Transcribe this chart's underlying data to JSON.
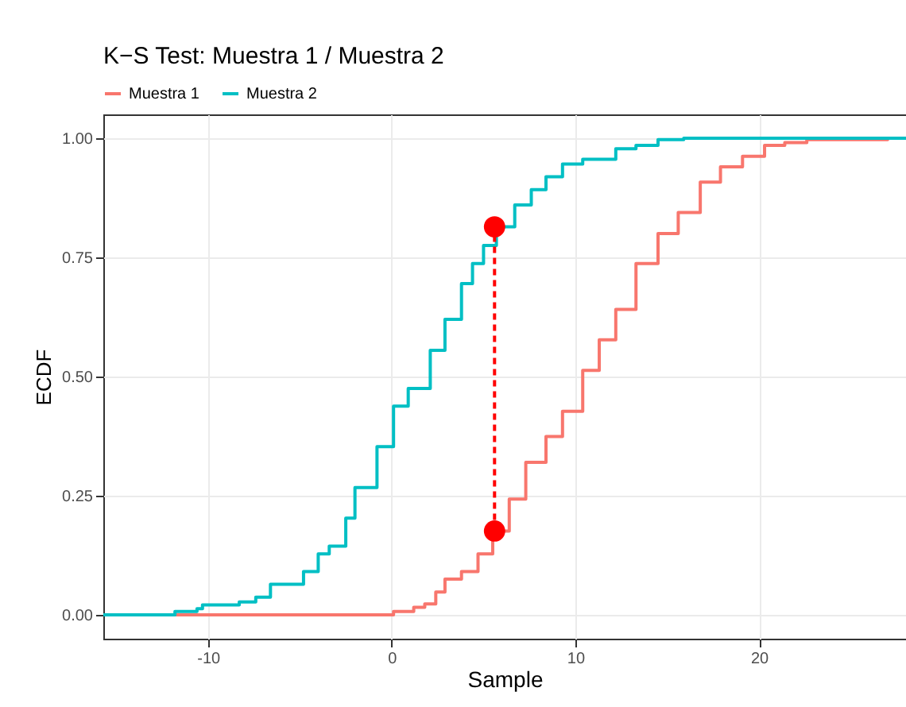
{
  "chart_data": {
    "type": "step",
    "title": "K−S Test: Muestra 1 / Muestra 2",
    "xlabel": "Sample",
    "ylabel": "ECDF",
    "xlim": [
      -15.7,
      28
    ],
    "xticks": [
      -10,
      0,
      10,
      20
    ],
    "ylim": [
      -0.05,
      1.05
    ],
    "yticks": [
      {
        "value": 0,
        "label": "0.00"
      },
      {
        "value": 0.25,
        "label": "0.25"
      },
      {
        "value": 0.5,
        "label": "0.50"
      },
      {
        "value": 0.75,
        "label": "0.75"
      },
      {
        "value": 1,
        "label": "1.00"
      }
    ],
    "grid": true,
    "legend": "top",
    "series": [
      {
        "name": "Muestra 1",
        "color": "#f8766d",
        "x": [
          -13.5,
          -0.4,
          0.1,
          1.2,
          1.8,
          2.4,
          2.9,
          3.8,
          4.7,
          5.5,
          6.4,
          7.3,
          8.4,
          9.3,
          10.4,
          11.3,
          12.2,
          13.3,
          14.5,
          15.6,
          16.8,
          17.9,
          19.1,
          20.3,
          21.4,
          22.6,
          27.0
        ],
        "values": [
          0,
          0,
          0.007,
          0.016,
          0.023,
          0.048,
          0.075,
          0.091,
          0.128,
          0.176,
          0.243,
          0.32,
          0.374,
          0.427,
          0.513,
          0.577,
          0.641,
          0.737,
          0.8,
          0.844,
          0.908,
          0.94,
          0.962,
          0.985,
          0.991,
          0.997,
          1
        ]
      },
      {
        "name": "Muestra 2",
        "color": "#00bfc4",
        "x": [
          -15.7,
          -13.5,
          -11.8,
          -10.6,
          -10.3,
          -8.3,
          -7.4,
          -6.6,
          -4.8,
          -4.0,
          -3.4,
          -2.5,
          -2.0,
          -0.8,
          0.1,
          0.9,
          2.1,
          2.9,
          3.8,
          4.4,
          5.0,
          5.7,
          6.7,
          7.6,
          8.4,
          9.3,
          10.4,
          12.2,
          13.3,
          14.5,
          15.9,
          28
        ],
        "values": [
          0,
          0,
          0.007,
          0.013,
          0.021,
          0.027,
          0.037,
          0.064,
          0.091,
          0.128,
          0.144,
          0.203,
          0.267,
          0.353,
          0.438,
          0.475,
          0.555,
          0.62,
          0.695,
          0.737,
          0.775,
          0.814,
          0.86,
          0.892,
          0.919,
          0.946,
          0.956,
          0.978,
          0.985,
          0.997,
          1,
          1
        ]
      },
      {
        "type": "line",
        "color": "#ff0000",
        "line_style": "dashed",
        "marker": "circle",
        "x": [
          5.6,
          5.6
        ],
        "values": [
          0.176,
          0.814
        ]
      }
    ]
  }
}
